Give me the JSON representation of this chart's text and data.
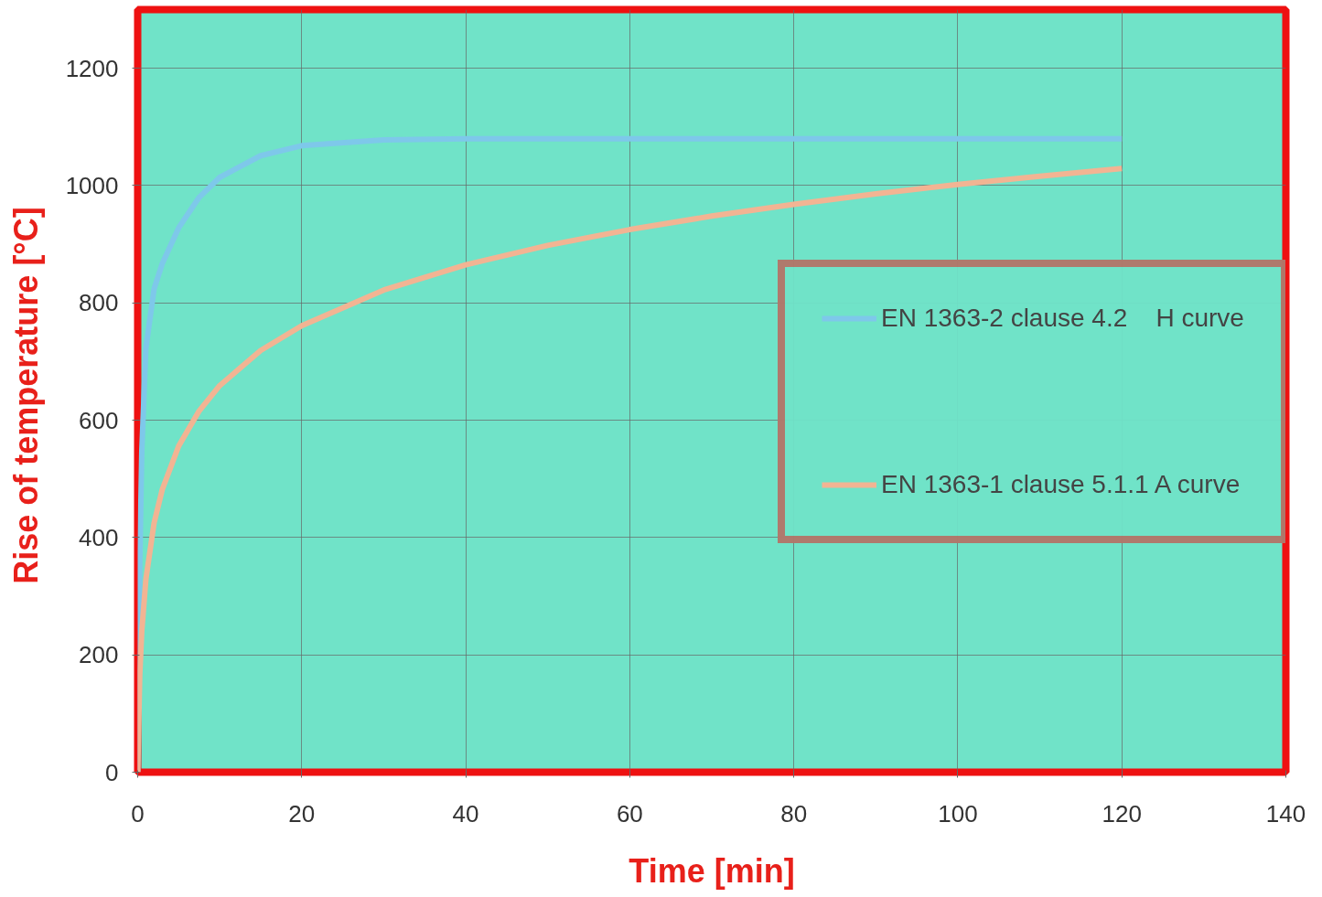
{
  "chart_data": {
    "type": "line",
    "xlabel": "Time [min]",
    "ylabel": "Rise of temperature  [°C]",
    "xlim": [
      0,
      140
    ],
    "ylim": [
      0,
      1300
    ],
    "xticks": [
      0,
      20,
      40,
      60,
      80,
      100,
      120,
      140
    ],
    "yticks": [
      0,
      200,
      400,
      600,
      800,
      1000,
      1200
    ],
    "grid": true,
    "legend": "right",
    "marker": "none",
    "line_style": "solid",
    "series": [
      {
        "name": "EN 1363-2 clause 4.2    H curve",
        "color": "#7ec8ea",
        "x": [
          0,
          0.25,
          0.5,
          1,
          2,
          3,
          5,
          7.5,
          10,
          15,
          20,
          30,
          40,
          60,
          80,
          100,
          120
        ],
        "values": [
          0,
          353,
          548,
          723,
          824,
          867,
          928,
          980,
          1014,
          1051,
          1068,
          1078,
          1080,
          1080,
          1080,
          1080,
          1080
        ]
      },
      {
        "name": "EN 1363-1 clause 5.1.1 A curve",
        "color": "#f2b493",
        "x": [
          0,
          0.25,
          0.5,
          1,
          2,
          3,
          5,
          7.5,
          10,
          15,
          20,
          30,
          40,
          50,
          60,
          70,
          80,
          90,
          100,
          110,
          120
        ],
        "values": [
          0,
          165,
          241,
          329,
          425,
          482,
          556,
          616,
          659,
          719,
          761,
          822,
          865,
          898,
          925,
          948,
          968,
          986,
          1002,
          1016,
          1029
        ]
      }
    ]
  }
}
